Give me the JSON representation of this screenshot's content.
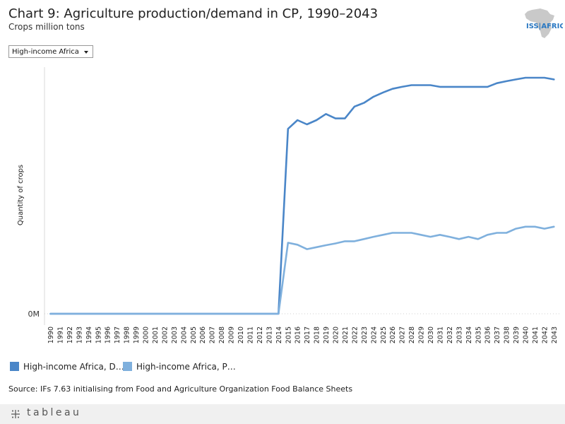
{
  "header": {
    "title": "Chart 9: Agriculture production/demand in CP, 1990–2043",
    "subtitle": "Crops million tons",
    "logo_text": "ISS|AFRICA"
  },
  "filter": {
    "selected": "High-income Africa"
  },
  "legend": {
    "items": [
      {
        "label": "High-income Africa, D…",
        "color": "#4a86c8"
      },
      {
        "label": "High-income Africa, P…",
        "color": "#7fb0dd"
      }
    ]
  },
  "source": "Source: IFs 7.63 initialising from Food and Agriculture Organization Food Balance Sheets",
  "footer": {
    "brand": "tableau",
    "brand_icon": "tableau-logo-icon"
  },
  "chart_data": {
    "type": "line",
    "title": "Chart 9: Agriculture production/demand in CP, 1990–2043",
    "xlabel": "",
    "ylabel": "Quantity of crops",
    "y_tick_labels": [
      "0M"
    ],
    "ylim": [
      0,
      1
    ],
    "grid": false,
    "legend_position": "bottom-left",
    "x": [
      1990,
      1991,
      1992,
      1993,
      1994,
      1995,
      1996,
      1997,
      1998,
      1999,
      2000,
      2001,
      2002,
      2003,
      2004,
      2005,
      2006,
      2007,
      2008,
      2009,
      2010,
      2011,
      2012,
      2013,
      2014,
      2015,
      2016,
      2017,
      2018,
      2019,
      2020,
      2021,
      2022,
      2023,
      2024,
      2025,
      2026,
      2027,
      2028,
      2029,
      2030,
      2031,
      2032,
      2033,
      2034,
      2035,
      2036,
      2037,
      2038,
      2039,
      2040,
      2041,
      2042,
      2043
    ],
    "series": [
      {
        "name": "High-income Africa, D…",
        "color": "#4a86c8",
        "values": [
          0,
          0,
          0,
          0,
          0,
          0,
          0,
          0,
          0,
          0,
          0,
          0,
          0,
          0,
          0,
          0,
          0,
          0,
          0,
          0,
          0,
          0,
          0,
          0,
          0,
          0.75,
          0.785,
          0.768,
          0.785,
          0.81,
          0.792,
          0.792,
          0.84,
          0.855,
          0.88,
          0.897,
          0.912,
          0.92,
          0.927,
          0.927,
          0.927,
          0.92,
          0.92,
          0.92,
          0.92,
          0.92,
          0.92,
          0.935,
          0.943,
          0.95,
          0.957,
          0.957,
          0.957,
          0.95
        ]
      },
      {
        "name": "High-income Africa, P…",
        "color": "#7fb0dd",
        "values": [
          0,
          0,
          0,
          0,
          0,
          0,
          0,
          0,
          0,
          0,
          0,
          0,
          0,
          0,
          0,
          0,
          0,
          0,
          0,
          0,
          0,
          0,
          0,
          0,
          0,
          0.288,
          0.28,
          0.262,
          0.27,
          0.278,
          0.285,
          0.294,
          0.294,
          0.303,
          0.312,
          0.32,
          0.328,
          0.328,
          0.328,
          0.32,
          0.312,
          0.32,
          0.312,
          0.303,
          0.312,
          0.303,
          0.32,
          0.328,
          0.328,
          0.345,
          0.353,
          0.353,
          0.345,
          0.353
        ]
      }
    ]
  }
}
